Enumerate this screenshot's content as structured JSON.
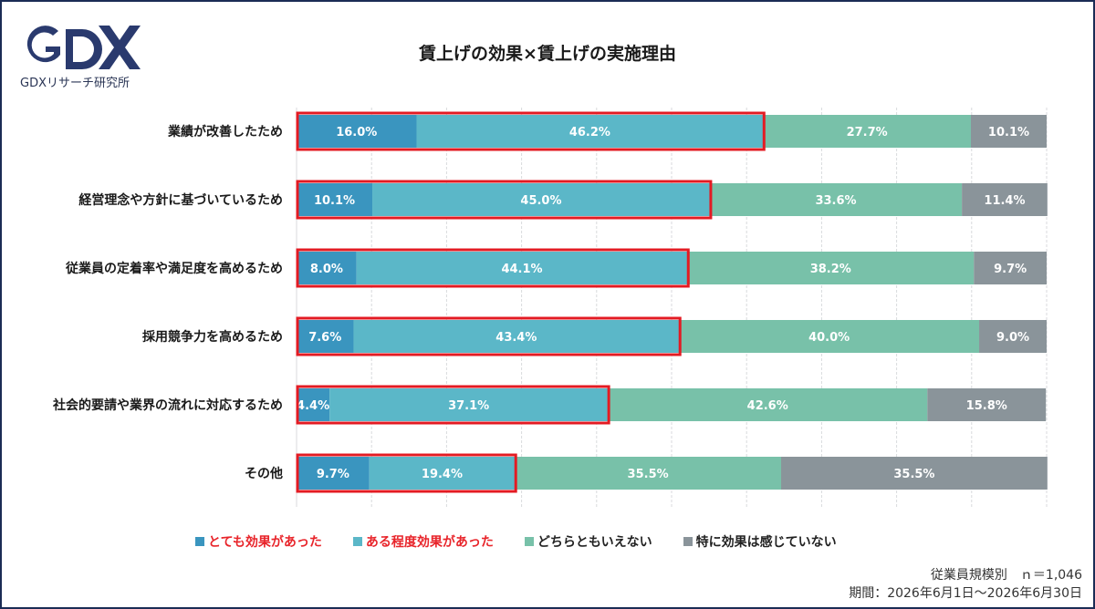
{
  "logo": {
    "text": "GDX",
    "subtitle": "GDXリサーチ研究所",
    "color": "#2a3a6e"
  },
  "chart_data": {
    "type": "bar",
    "orientation": "horizontal",
    "stacked": true,
    "title": "賃上げの効果×賃上げの実施理由",
    "categories": [
      "業績が改善したため",
      "経営理念や方針に基づいているため",
      "従業員の定着率や満足度を高めるため",
      "採用競争力を高めるため",
      "社会的要請や業界の流れに対応するため",
      "その他"
    ],
    "series": [
      {
        "name": "とても効果があった",
        "color": "#3a95bf",
        "values": [
          16.0,
          10.1,
          8.0,
          7.6,
          4.4,
          9.7
        ],
        "legend_color": "#e8242a"
      },
      {
        "name": "ある程度効果があった",
        "color": "#5bb7c8",
        "values": [
          46.2,
          45.0,
          44.1,
          43.4,
          37.1,
          19.4
        ],
        "legend_color": "#e8242a"
      },
      {
        "name": "どちらともいえない",
        "color": "#78c1a9",
        "values": [
          27.7,
          33.6,
          38.2,
          40.0,
          42.6,
          35.5
        ],
        "legend_color": "#222222"
      },
      {
        "name": "特に効果は感じていない",
        "color": "#8a949a",
        "values": [
          10.1,
          11.4,
          9.7,
          9.0,
          15.8,
          35.5
        ],
        "legend_color": "#222222"
      }
    ],
    "highlight": {
      "series_indices": [
        0,
        1
      ],
      "color": "#e31b23"
    },
    "xlim": [
      0,
      100
    ],
    "grid": true
  },
  "notes": {
    "line1": "従業員規模別　ｎ＝1,046",
    "line2": "期間：2026年6月1日～2026年6月30日"
  }
}
